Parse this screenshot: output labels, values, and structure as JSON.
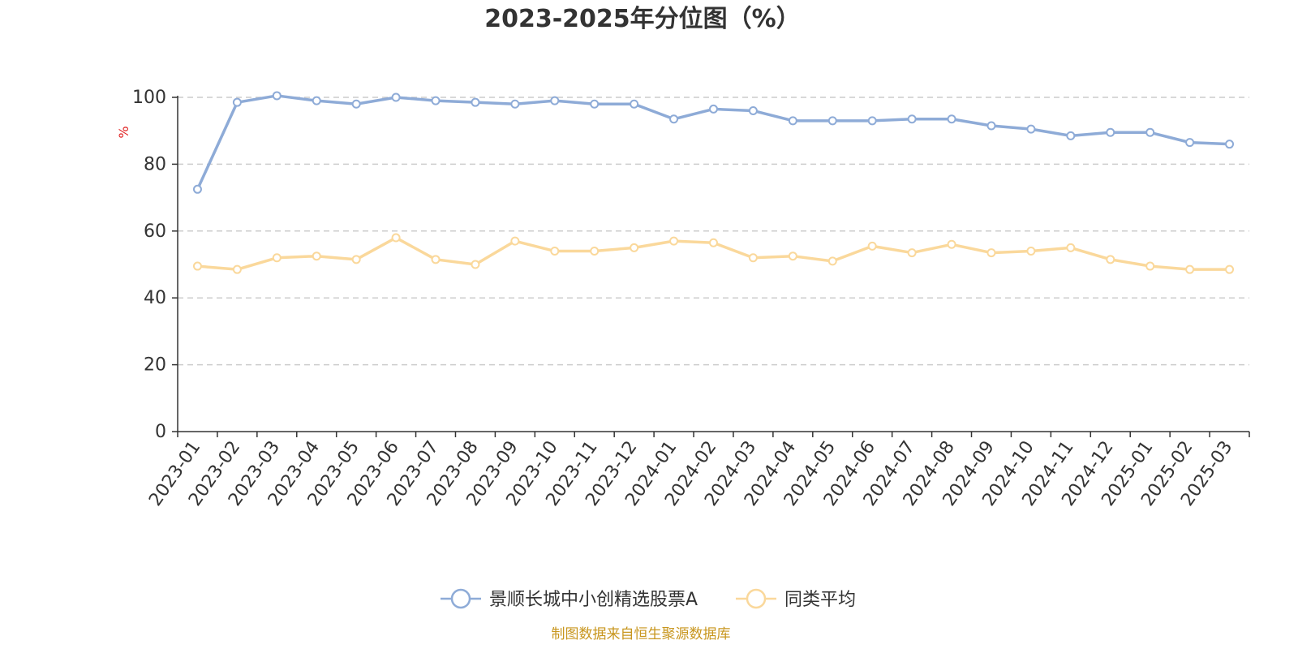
{
  "chart_data": {
    "type": "line",
    "title": "2023-2025年分位图（%）",
    "ylabel": "%",
    "xlabel": "",
    "ylim": [
      0,
      100
    ],
    "yticks": [
      0,
      20,
      40,
      60,
      80,
      100
    ],
    "grid": true,
    "legend_position": "bottom",
    "categories": [
      "2023-01",
      "2023-02",
      "2023-03",
      "2023-04",
      "2023-05",
      "2023-06",
      "2023-07",
      "2023-08",
      "2023-09",
      "2023-10",
      "2023-11",
      "2023-12",
      "2024-01",
      "2024-02",
      "2024-03",
      "2024-04",
      "2024-05",
      "2024-06",
      "2024-07",
      "2024-08",
      "2024-09",
      "2024-10",
      "2024-11",
      "2024-12",
      "2025-01",
      "2025-02",
      "2025-03"
    ],
    "series": [
      {
        "name": "景顺长城中小创精选股票A",
        "color": "#8eabd7",
        "values": [
          72.5,
          98.5,
          100.5,
          99.0,
          98.0,
          100.0,
          99.0,
          98.5,
          98.0,
          99.0,
          98.0,
          98.0,
          93.5,
          96.5,
          96.0,
          93.0,
          93.0,
          93.0,
          93.5,
          93.5,
          91.5,
          90.5,
          88.5,
          89.5,
          89.5,
          86.5,
          86.0
        ]
      },
      {
        "name": "同类平均",
        "color": "#fad89b",
        "values": [
          49.5,
          48.5,
          52.0,
          52.5,
          51.5,
          58.0,
          51.5,
          50.0,
          57.0,
          54.0,
          54.0,
          55.0,
          57.0,
          56.5,
          52.0,
          52.5,
          51.0,
          55.5,
          53.5,
          56.0,
          53.5,
          54.0,
          55.0,
          51.5,
          49.5,
          48.5,
          48.5
        ]
      }
    ]
  },
  "footer": {
    "source": "制图数据来自恒生聚源数据库"
  }
}
